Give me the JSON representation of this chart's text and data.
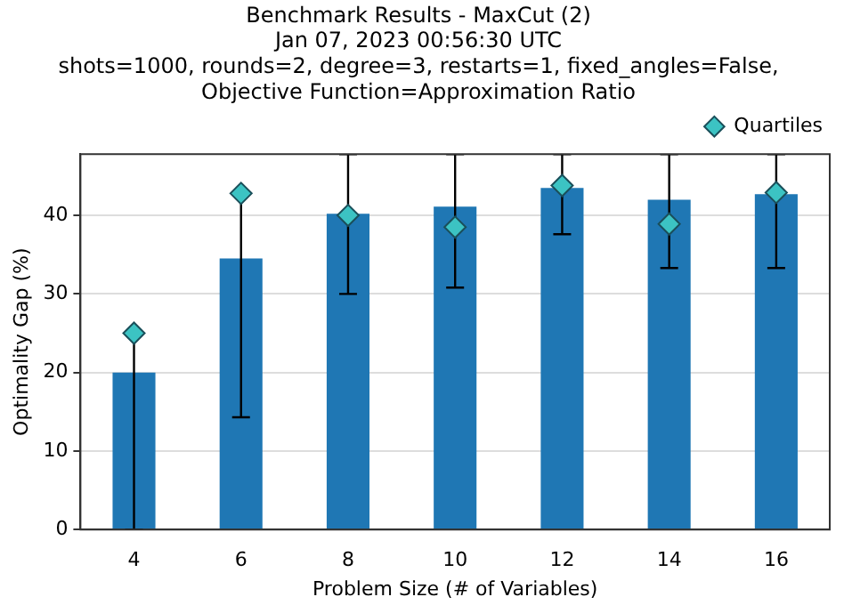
{
  "chart_data": {
    "type": "bar",
    "title": "Benchmark Results - MaxCut (2)\nJan 07, 2023 00:56:30 UTC\nshots=1000, rounds=2, degree=3, restarts=1, fixed_angles=False,\nObjective Function=Approximation Ratio",
    "xlabel": "Problem Size (# of Variables)",
    "ylabel": "Optimality Gap (%)",
    "categories": [
      "4",
      "6",
      "8",
      "10",
      "12",
      "14",
      "16"
    ],
    "ylim": [
      0,
      47.8
    ],
    "yticks": [
      0,
      10,
      20,
      30,
      40
    ],
    "grid": "y",
    "legend": "top right",
    "marker": "diamond",
    "series": [
      {
        "color": "#1f77b4",
        "values": [
          20,
          34.5,
          40.2,
          41.1,
          43.5,
          42,
          42.7
        ]
      },
      {
        "type": "scatter",
        "name": "Quartiles",
        "color": "#3cc3c3",
        "x": [
          "4",
          "6",
          "8",
          "10",
          "12",
          "14",
          "16"
        ],
        "values": [
          25,
          42.8,
          40,
          38.5,
          43.8,
          38.9,
          42.9
        ],
        "errors": [
          [
            0,
            25
          ],
          [
            14.3,
            42.8
          ],
          [
            30,
            47.8
          ],
          [
            30.8,
            47.8
          ],
          [
            37.6,
            47.8
          ],
          [
            33.3,
            47.8
          ],
          [
            33.3,
            47.8
          ]
        ]
      }
    ]
  }
}
